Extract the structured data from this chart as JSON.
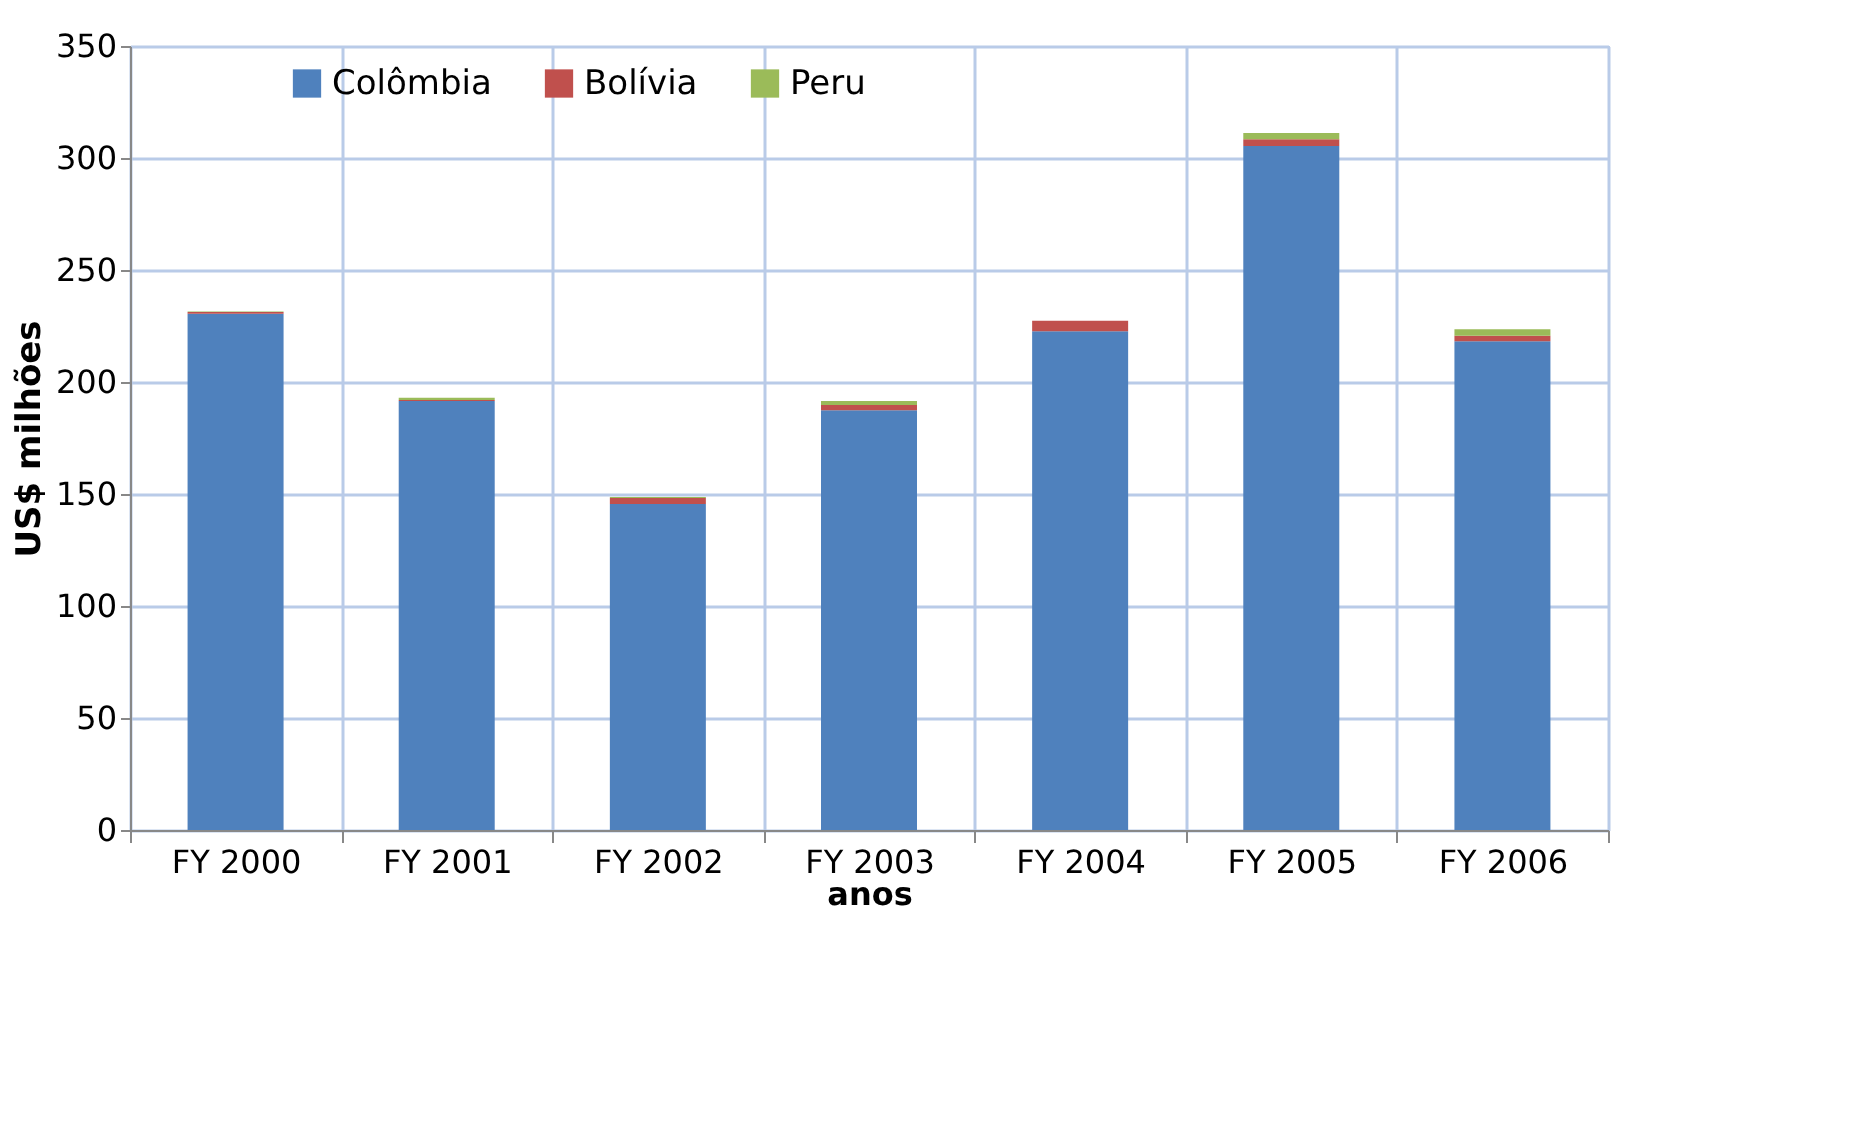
{
  "chart_data": {
    "type": "bar",
    "stacked": true,
    "xlabel": "anos",
    "ylabel": "US$ milhões",
    "categories": [
      "FY 2000",
      "FY 2001",
      "FY 2002",
      "FY 2003",
      "FY 2004",
      "FY 2005",
      "FY 2006"
    ],
    "series": [
      {
        "name": "Colômbia",
        "color": "#4f81bd",
        "values": [
          230.5,
          191.5,
          145.5,
          187.4,
          222.7,
          305.4,
          218.2
        ]
      },
      {
        "name": "Bolívia",
        "color": "#c0504d",
        "values": [
          0.7,
          0.5,
          2.7,
          2.3,
          4.6,
          3.0,
          2.5
        ]
      },
      {
        "name": "Peru",
        "color": "#9bbb59",
        "values": [
          0.3,
          1.0,
          0.5,
          1.8,
          0.0,
          2.8,
          2.8
        ]
      }
    ],
    "ylim": [
      0,
      350
    ],
    "yticks": [
      0,
      50,
      100,
      150,
      200,
      250,
      300,
      350
    ],
    "grid": true,
    "legend": "top left"
  }
}
